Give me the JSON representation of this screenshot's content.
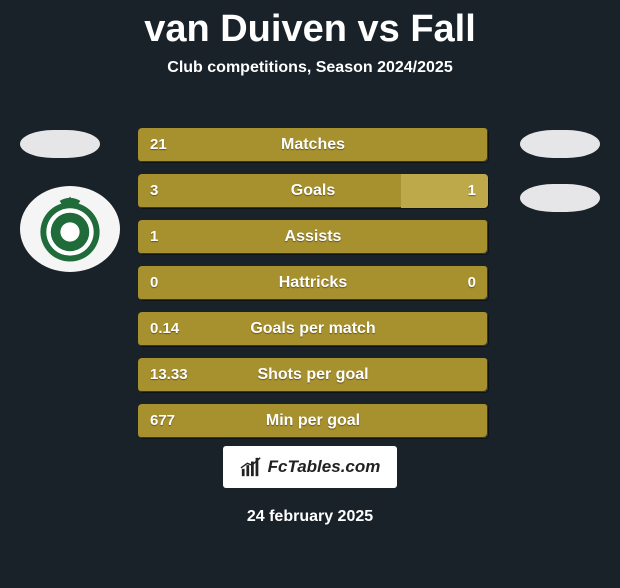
{
  "header": {
    "title": "van Duiven vs Fall",
    "subtitle": "Club competitions, Season 2024/2025"
  },
  "sideBadges": {
    "bg": "#e6e6e8"
  },
  "clubLogo": {
    "ring_color": "#1f6b3a",
    "accent_color": "#ffffff"
  },
  "stats": {
    "bar_bg": "#a7902e",
    "segment_bg": "#bda84a",
    "rows": [
      {
        "label": "Matches",
        "left": "21",
        "right": "",
        "right_segment_pct": 0
      },
      {
        "label": "Goals",
        "left": "3",
        "right": "1",
        "right_segment_pct": 25
      },
      {
        "label": "Assists",
        "left": "1",
        "right": "",
        "right_segment_pct": 0
      },
      {
        "label": "Hattricks",
        "left": "0",
        "right": "0",
        "right_segment_pct": 0
      },
      {
        "label": "Goals per match",
        "left": "0.14",
        "right": "",
        "right_segment_pct": 0
      },
      {
        "label": "Shots per goal",
        "left": "13.33",
        "right": "",
        "right_segment_pct": 0
      },
      {
        "label": "Min per goal",
        "left": "677",
        "right": "",
        "right_segment_pct": 0
      }
    ]
  },
  "footer": {
    "brand": "FcTables.com",
    "date": "24 february 2025"
  },
  "colors": {
    "page_bg": "#1a2229",
    "text": "#ffffff"
  }
}
